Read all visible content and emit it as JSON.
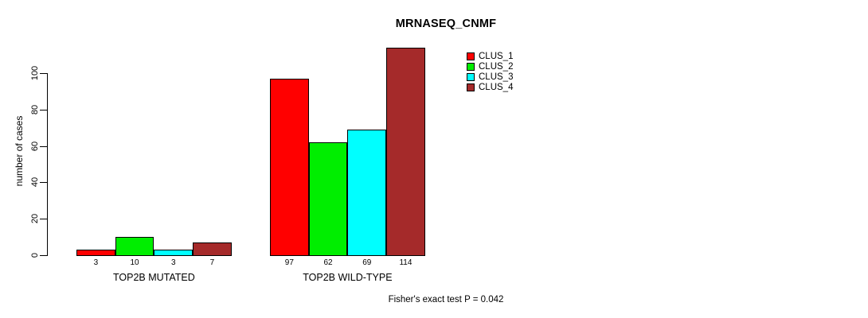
{
  "title": "MRNASEQ_CNMF",
  "footer": "Fisher's exact test P = 0.042",
  "chart_data": {
    "type": "bar",
    "title": "MRNASEQ_CNMF",
    "xlabel": "",
    "ylabel": "number of cases",
    "ylim": [
      0,
      115
    ],
    "yticks": [
      0,
      20,
      40,
      60,
      80,
      100
    ],
    "grid": false,
    "legend_position": "top-right-inside",
    "categories": [
      "TOP2B MUTATED",
      "TOP2B WILD-TYPE"
    ],
    "series": [
      {
        "name": "CLUS_1",
        "color": "#ff0000",
        "values": [
          3,
          97
        ]
      },
      {
        "name": "CLUS_2",
        "color": "#00ee00",
        "values": [
          10,
          62
        ]
      },
      {
        "name": "CLUS_3",
        "color": "#00ffff",
        "values": [
          3,
          69
        ]
      },
      {
        "name": "CLUS_4",
        "color": "#a52a2a",
        "values": [
          7,
          114
        ]
      }
    ],
    "bar_value_labels": [
      [
        "3",
        "10",
        "3",
        "7"
      ],
      [
        "97",
        "62",
        "69",
        "114"
      ]
    ],
    "annotation": "Fisher's exact test P = 0.042"
  }
}
